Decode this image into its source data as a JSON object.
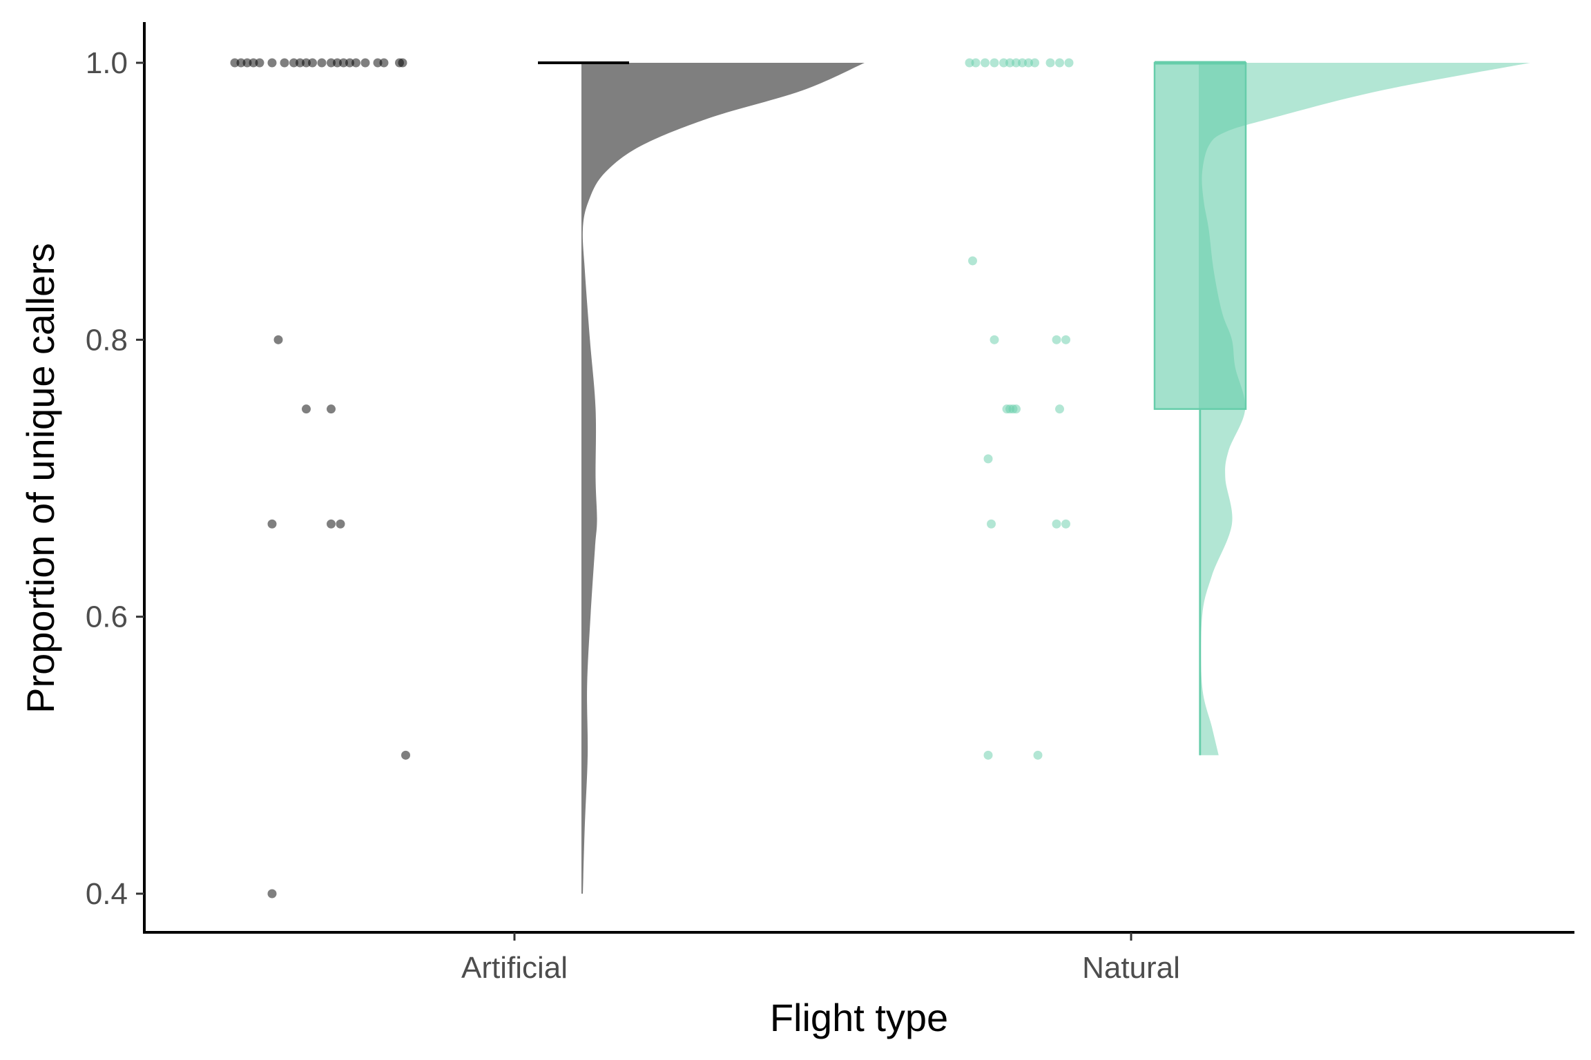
{
  "chart_data": {
    "type": "raincloud",
    "xlabel": "Flight type",
    "ylabel": "Proportion of unique callers",
    "ylim": [
      0.37,
      1.03
    ],
    "yticks": [
      0.4,
      0.6,
      0.8,
      1.0
    ],
    "yticklabels": [
      "0.4",
      "0.6",
      "0.8",
      "1.0"
    ],
    "categories": [
      "Artificial",
      "Natural"
    ],
    "grid": false,
    "legend": "none",
    "groups": [
      {
        "name": "Artificial",
        "color": "#000000",
        "box": {
          "min": 1.0,
          "q1": 1.0,
          "median": 1.0,
          "q3": 1.0,
          "max": 1.0
        },
        "density": {
          "y": [
            0.4,
            0.45,
            0.5,
            0.55,
            0.6,
            0.65,
            0.67,
            0.7,
            0.75,
            0.8,
            0.85,
            0.88,
            0.9,
            0.92,
            0.94,
            0.96,
            0.98,
            1.0
          ],
          "d": [
            0.005,
            0.012,
            0.022,
            0.02,
            0.032,
            0.048,
            0.055,
            0.05,
            0.05,
            0.03,
            0.012,
            0.005,
            0.025,
            0.08,
            0.21,
            0.45,
            0.78,
            1.0
          ]
        },
        "points": [
          {
            "x": -0.45,
            "y": 1.0
          },
          {
            "x": -0.44,
            "y": 1.0
          },
          {
            "x": -0.43,
            "y": 1.0
          },
          {
            "x": -0.42,
            "y": 1.0
          },
          {
            "x": -0.41,
            "y": 1.0
          },
          {
            "x": -0.39,
            "y": 1.0
          },
          {
            "x": -0.37,
            "y": 1.0
          },
          {
            "x": -0.355,
            "y": 1.0
          },
          {
            "x": -0.345,
            "y": 1.0
          },
          {
            "x": -0.335,
            "y": 1.0
          },
          {
            "x": -0.325,
            "y": 1.0
          },
          {
            "x": -0.31,
            "y": 1.0
          },
          {
            "x": -0.295,
            "y": 1.0
          },
          {
            "x": -0.285,
            "y": 1.0
          },
          {
            "x": -0.275,
            "y": 1.0
          },
          {
            "x": -0.265,
            "y": 1.0
          },
          {
            "x": -0.255,
            "y": 1.0
          },
          {
            "x": -0.24,
            "y": 1.0
          },
          {
            "x": -0.22,
            "y": 1.0
          },
          {
            "x": -0.21,
            "y": 1.0
          },
          {
            "x": -0.185,
            "y": 1.0
          },
          {
            "x": -0.18,
            "y": 1.0
          },
          {
            "x": -0.38,
            "y": 0.8
          },
          {
            "x": -0.335,
            "y": 0.75
          },
          {
            "x": -0.295,
            "y": 0.75
          },
          {
            "x": -0.39,
            "y": 0.667
          },
          {
            "x": -0.295,
            "y": 0.667
          },
          {
            "x": -0.28,
            "y": 0.667
          },
          {
            "x": -0.175,
            "y": 0.5
          },
          {
            "x": -0.39,
            "y": 0.4
          }
        ]
      },
      {
        "name": "Natural",
        "color": "#66CDAA",
        "box": {
          "min": 0.5,
          "q1": 0.75,
          "median": 1.0,
          "q3": 1.0,
          "max": 1.0
        },
        "density": {
          "y": [
            0.5,
            0.52,
            0.55,
            0.6,
            0.63,
            0.667,
            0.7,
            0.72,
            0.75,
            0.78,
            0.8,
            0.82,
            0.85,
            0.88,
            0.9,
            0.92,
            0.94,
            0.95,
            0.96,
            0.98,
            1.0
          ],
          "d": [
            0.06,
            0.04,
            0.01,
            0.01,
            0.04,
            0.1,
            0.08,
            0.09,
            0.14,
            0.11,
            0.1,
            0.07,
            0.045,
            0.03,
            0.015,
            0.01,
            0.03,
            0.08,
            0.22,
            0.55,
            1.0
          ]
        },
        "points": [
          {
            "x": -0.26,
            "y": 1.0
          },
          {
            "x": -0.25,
            "y": 1.0
          },
          {
            "x": -0.235,
            "y": 1.0
          },
          {
            "x": -0.22,
            "y": 1.0
          },
          {
            "x": -0.205,
            "y": 1.0
          },
          {
            "x": -0.195,
            "y": 1.0
          },
          {
            "x": -0.185,
            "y": 1.0
          },
          {
            "x": -0.175,
            "y": 1.0
          },
          {
            "x": -0.165,
            "y": 1.0
          },
          {
            "x": -0.155,
            "y": 1.0
          },
          {
            "x": -0.13,
            "y": 1.0
          },
          {
            "x": -0.115,
            "y": 1.0
          },
          {
            "x": -0.1,
            "y": 1.0
          },
          {
            "x": -0.255,
            "y": 0.857
          },
          {
            "x": -0.22,
            "y": 0.8
          },
          {
            "x": -0.12,
            "y": 0.8
          },
          {
            "x": -0.105,
            "y": 0.8
          },
          {
            "x": -0.2,
            "y": 0.75
          },
          {
            "x": -0.195,
            "y": 0.75
          },
          {
            "x": -0.19,
            "y": 0.75
          },
          {
            "x": -0.185,
            "y": 0.75
          },
          {
            "x": -0.115,
            "y": 0.75
          },
          {
            "x": -0.23,
            "y": 0.714
          },
          {
            "x": -0.225,
            "y": 0.667
          },
          {
            "x": -0.12,
            "y": 0.667
          },
          {
            "x": -0.105,
            "y": 0.667
          },
          {
            "x": -0.23,
            "y": 0.5
          },
          {
            "x": -0.15,
            "y": 0.5
          }
        ]
      }
    ]
  }
}
